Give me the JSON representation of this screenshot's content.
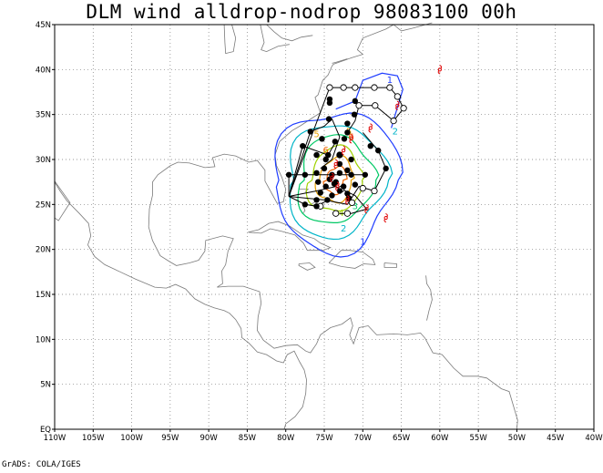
{
  "title": "DLM wind alldrop-nodrop 98083100 00h",
  "footer": "GrADS: COLA/IGES",
  "map": {
    "lon_range": [
      -110,
      -40
    ],
    "lat_range": [
      0,
      45
    ],
    "lat_labels": [
      "45N",
      "40N",
      "35N",
      "30N",
      "25N",
      "20N",
      "15N",
      "10N",
      "5N",
      "EQ"
    ],
    "lon_labels": [
      "110W",
      "105W",
      "100W",
      "95W",
      "90W",
      "85W",
      "80W",
      "75W",
      "70W",
      "65W",
      "60W",
      "55W",
      "50W",
      "45W",
      "40W"
    ],
    "gridlines": "dotted",
    "storm_center": [
      -73.8,
      27.7
    ]
  },
  "contours": [
    {
      "level": "1",
      "color": "#1e3cff",
      "rx": 8.0,
      "ry": 7.8
    },
    {
      "level": "2",
      "color": "#00b4c8",
      "rx": 6.4,
      "ry": 6.3
    },
    {
      "level": "3",
      "color": "#00c864",
      "rx": 4.9,
      "ry": 4.9
    },
    {
      "level": "4",
      "color": "#a0d200",
      "rx": 3.5,
      "ry": 3.6
    },
    {
      "level": "5",
      "color": "#e6a000",
      "rx": 2.3,
      "ry": 2.5
    },
    {
      "level": "6",
      "color": "#f06400",
      "rx": 1.3,
      "ry": 1.5
    }
  ],
  "contour_labels": [
    {
      "text": "1",
      "lon": -70.0,
      "lat": 20.5,
      "color": "#1e3cff"
    },
    {
      "text": "1",
      "lon": -66.5,
      "lat": 38.5,
      "color": "#1e3cff"
    },
    {
      "text": "2",
      "lon": -65.8,
      "lat": 32.8,
      "color": "#00b4c8"
    },
    {
      "text": "2",
      "lon": -72.5,
      "lat": 22.0,
      "color": "#00b4c8"
    },
    {
      "text": "3",
      "lon": -71.0,
      "lat": 24.5,
      "color": "#00c864"
    },
    {
      "text": "4",
      "lon": -72.8,
      "lat": 23.7,
      "color": "#a0d200"
    },
    {
      "text": "5",
      "lon": -76.0,
      "lat": 32.5,
      "color": "#e6a000"
    },
    {
      "text": "6",
      "lon": -74.8,
      "lat": 30.7,
      "color": "#f06400"
    },
    {
      "text": "5",
      "lon": -71.8,
      "lat": 32.8,
      "color": "#e6a000"
    },
    {
      "text": "6",
      "lon": -71.5,
      "lat": 32.2,
      "color": "#f06400"
    }
  ],
  "flight_tracks": [
    {
      "name": "track-a",
      "points": [
        [
          -79.6,
          25.9
        ],
        [
          -74.3,
          38.0
        ],
        [
          -71.0,
          38.0
        ],
        [
          -66.5,
          38.0
        ],
        [
          -65.5,
          37.0
        ],
        [
          -64.7,
          35.7
        ],
        [
          -66.0,
          34.3
        ],
        [
          -68.4,
          36.0
        ],
        [
          -70.5,
          36.0
        ],
        [
          -71.0,
          34.3
        ],
        [
          -72.0,
          33.0
        ]
      ]
    },
    {
      "name": "track-b",
      "points": [
        [
          -79.6,
          25.9
        ],
        [
          -76.8,
          33.1
        ],
        [
          -75.0,
          33.7
        ],
        [
          -74.0,
          34.5
        ],
        [
          -73.0,
          32.5
        ],
        [
          -74.0,
          30.0
        ],
        [
          -75.5,
          29.0
        ]
      ]
    },
    {
      "name": "track-c",
      "points": [
        [
          -79.6,
          25.9
        ],
        [
          -77.8,
          31.5
        ],
        [
          -74.5,
          30.5
        ],
        [
          -73.5,
          32.0
        ]
      ]
    },
    {
      "name": "track-d",
      "points": [
        [
          -79.6,
          25.9
        ],
        [
          -79.6,
          28.3
        ],
        [
          -77.0,
          28.3
        ],
        [
          -74.0,
          28.3
        ],
        [
          -71.5,
          28.3
        ],
        [
          -69.7,
          28.3
        ]
      ]
    },
    {
      "name": "track-e",
      "points": [
        [
          -79.6,
          25.9
        ],
        [
          -76.0,
          26.5
        ],
        [
          -73.5,
          27.0
        ],
        [
          -71.0,
          26.0
        ],
        [
          -69.5,
          24.5
        ],
        [
          -71.5,
          24.0
        ],
        [
          -73.0,
          24.0
        ]
      ]
    },
    {
      "name": "track-f",
      "points": [
        [
          -79.6,
          25.9
        ],
        [
          -75.0,
          25.5
        ],
        [
          -72.0,
          25.0
        ],
        [
          -70.5,
          27.0
        ],
        [
          -68.5,
          26.5
        ],
        [
          -67.0,
          29.0
        ],
        [
          -68.0,
          31.0
        ],
        [
          -70.0,
          33.0
        ]
      ]
    },
    {
      "name": "track-g",
      "points": [
        [
          -79.6,
          25.9
        ],
        [
          -77.5,
          25.0
        ],
        [
          -76.0,
          24.8
        ],
        [
          -74.5,
          25.5
        ]
      ]
    }
  ],
  "filled_drops": [
    [
      -74.3,
      36.7
    ],
    [
      -74.3,
      36.3
    ],
    [
      -74.4,
      34.5
    ],
    [
      -72.0,
      34.0
    ],
    [
      -71.1,
      35.0
    ],
    [
      -71.0,
      36.5
    ],
    [
      -69.0,
      31.5
    ],
    [
      -67.0,
      29.0
    ],
    [
      -68.0,
      31.0
    ],
    [
      -76.8,
      33.1
    ],
    [
      -75.3,
      32.3
    ],
    [
      -73.6,
      32.0
    ],
    [
      -72.4,
      32.3
    ],
    [
      -72.0,
      33.0
    ],
    [
      -77.8,
      31.5
    ],
    [
      -76.0,
      30.5
    ],
    [
      -74.5,
      30.5
    ],
    [
      -73.0,
      30.5
    ],
    [
      -71.5,
      30.0
    ],
    [
      -79.6,
      28.3
    ],
    [
      -77.5,
      28.3
    ],
    [
      -76.0,
      28.5
    ],
    [
      -75.0,
      29.0
    ],
    [
      -74.0,
      28.3
    ],
    [
      -73.0,
      28.5
    ],
    [
      -72.0,
      28.8
    ],
    [
      -71.5,
      28.3
    ],
    [
      -69.7,
      28.3
    ],
    [
      -75.8,
      27.5
    ],
    [
      -74.8,
      27.0
    ],
    [
      -73.7,
      27.3
    ],
    [
      -72.5,
      27.0
    ],
    [
      -71.0,
      27.2
    ],
    [
      -75.5,
      26.3
    ],
    [
      -74.0,
      26.0
    ],
    [
      -73.0,
      26.5
    ],
    [
      -72.0,
      26.2
    ],
    [
      -76.0,
      25.5
    ],
    [
      -74.6,
      25.5
    ],
    [
      -71.8,
      25.7
    ],
    [
      -77.5,
      25.0
    ],
    [
      -76.0,
      24.8
    ],
    [
      -74.3,
      27.8
    ],
    [
      -73.5,
      27.5
    ],
    [
      -73.0,
      29.5
    ],
    [
      -74.8,
      30.0
    ]
  ],
  "open_drops": [
    [
      -74.3,
      38.0
    ],
    [
      -72.5,
      38.0
    ],
    [
      -71.0,
      38.0
    ],
    [
      -68.5,
      38.0
    ],
    [
      -66.5,
      38.0
    ],
    [
      -65.5,
      37.0
    ],
    [
      -64.7,
      35.7
    ],
    [
      -66.0,
      34.3
    ],
    [
      -68.4,
      36.0
    ],
    [
      -70.5,
      36.0
    ],
    [
      -73.0,
      30.5
    ],
    [
      -72.0,
      24.0
    ],
    [
      -73.5,
      24.0
    ],
    [
      -75.5,
      24.8
    ],
    [
      -70.0,
      26.8
    ],
    [
      -68.5,
      26.5
    ],
    [
      -72.8,
      26.7
    ],
    [
      -71.4,
      25.2
    ]
  ],
  "storm_symbols": [
    {
      "lon": -60.0,
      "lat": 40.0
    },
    {
      "lon": -65.5,
      "lat": 36.0
    },
    {
      "lon": -69.0,
      "lat": 33.5
    },
    {
      "lon": -71.5,
      "lat": 32.3
    },
    {
      "lon": -72.5,
      "lat": 31.0
    },
    {
      "lon": -73.5,
      "lat": 29.5
    },
    {
      "lon": -74.0,
      "lat": 28.0
    },
    {
      "lon": -73.3,
      "lat": 27.0
    },
    {
      "lon": -72.0,
      "lat": 25.5
    },
    {
      "lon": -69.5,
      "lat": 24.5
    },
    {
      "lon": -67.0,
      "lat": 23.5
    }
  ],
  "colors": {
    "coast": "#7a7a7a",
    "grid": "#7a7a7a",
    "track": "#000000",
    "storm": "#e00000",
    "frame": "#000000"
  }
}
